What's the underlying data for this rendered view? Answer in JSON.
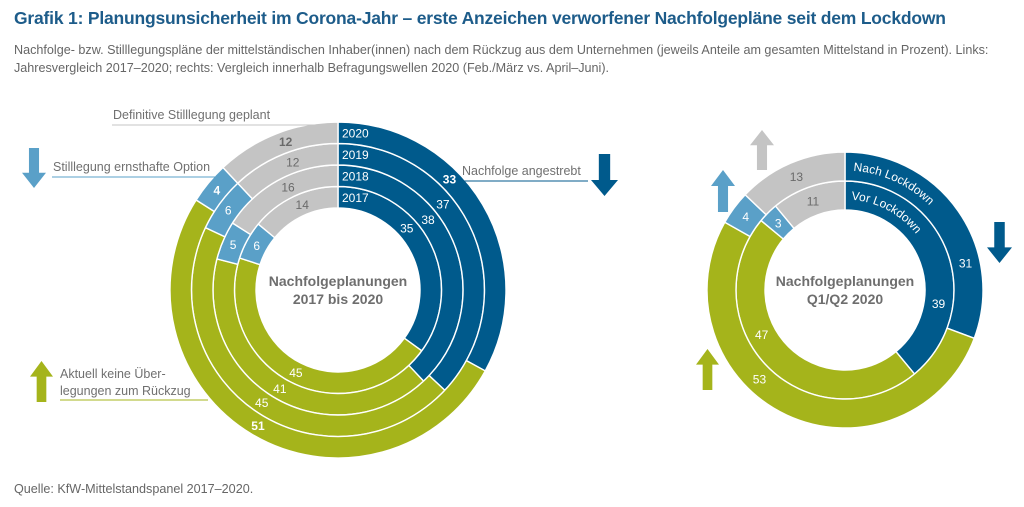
{
  "title": "Grafik 1: Planungsunsicherheit im Corona-Jahr – erste Anzeichen verworfener Nachfolgepläne seit dem Lockdown",
  "subtitle": "Nachfolge- bzw. Stilllegungspläne der mittelständischen Inhaber(innen) nach dem Rückzug aus dem Unternehmen (jeweils Anteile am gesamten Mittelstand in Prozent). Links: Jahresvergleich 2017–2020; rechts: Vergleich innerhalb Befragungswellen 2020 (Feb./März vs. April–Juni).",
  "source": "Quelle: KfW-Mittelstandspanel 2017–2020.",
  "colors": {
    "nachfolge": "#005a8c",
    "keine": "#a5b41b",
    "ernsthaft": "#5aa0c8",
    "definitiv": "#c4c4c4"
  },
  "chart_data": [
    {
      "type": "pie",
      "subtype": "multi-ring-donut",
      "title": "Nachfolgeplanungen 2017 bis 2020",
      "center_label": [
        "Nachfolgeplanungen",
        "2017 bis 2020"
      ],
      "categories": [
        "Nachfolge angestrebt",
        "Aktuell keine Überlegungen zum Rückzug",
        "Stilllegung ernsthafte Option",
        "Definitive Stilllegung geplant"
      ],
      "category_labels": {
        "nachfolge": "Nachfolge angestrebt",
        "keine": [
          "Aktuell keine Über-",
          "legungen zum Rückzug"
        ],
        "ernsthaft": "Stilllegung ernsthafte Option",
        "definitiv": "Definitive Stilllegung geplant"
      },
      "trend_arrows": {
        "nachfolge": "down",
        "keine": "up",
        "ernsthaft": "down"
      },
      "rings_inner_to_outer": [
        {
          "name": "2017",
          "values": [
            35,
            45,
            6,
            14
          ],
          "bold": false
        },
        {
          "name": "2018",
          "values": [
            38,
            41,
            5,
            16
          ],
          "bold": false
        },
        {
          "name": "2019",
          "values": [
            37,
            45,
            6,
            12
          ],
          "bold": false
        },
        {
          "name": "2020",
          "values": [
            33,
            51,
            4,
            12
          ],
          "bold": true
        }
      ],
      "unit": "Prozent"
    },
    {
      "type": "pie",
      "subtype": "multi-ring-donut",
      "title": "Nachfolgeplanungen Q1/Q2 2020",
      "center_label": [
        "Nachfolgeplanungen",
        "Q1/Q2 2020"
      ],
      "categories": [
        "Nachfolge angestrebt",
        "Aktuell keine Überlegungen zum Rückzug",
        "Stilllegung ernsthafte Option",
        "Definitive Stilllegung geplant"
      ],
      "trend_arrows": {
        "nachfolge": "down",
        "keine": "up",
        "ernsthaft": "up",
        "definitiv": "up"
      },
      "rings_inner_to_outer": [
        {
          "name": "Vor Lockdown",
          "values": [
            39,
            47,
            3,
            11
          ],
          "bold": false
        },
        {
          "name": "Nach Lockdown",
          "values": [
            31,
            53,
            4,
            13
          ],
          "bold": false
        }
      ],
      "unit": "Prozent"
    }
  ]
}
